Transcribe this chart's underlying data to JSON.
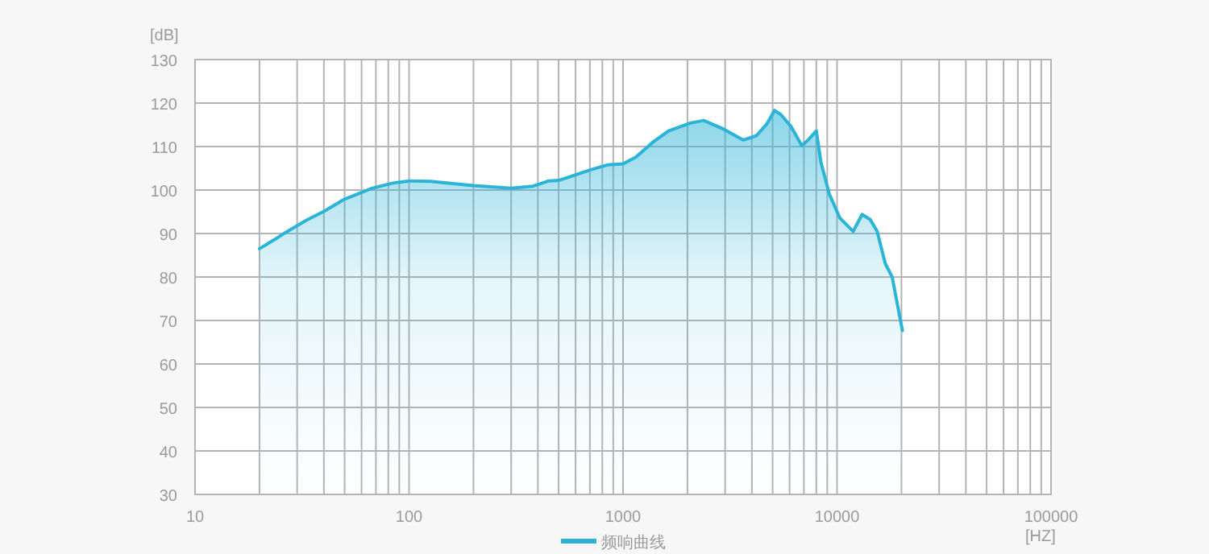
{
  "chart_data": {
    "type": "area",
    "xlabel": "[HZ]",
    "ylabel": "[dB]",
    "log": "x",
    "grid": true,
    "legend": "bottom",
    "marker": "none",
    "line_style": "solid",
    "xlim": [
      10,
      100000
    ],
    "ylim": [
      30,
      130
    ],
    "xticks": [
      10,
      {
        "value": 20,
        "label": null
      },
      {
        "value": 30,
        "label": null
      },
      {
        "value": 40,
        "label": null
      },
      {
        "value": 50,
        "label": null
      },
      {
        "value": 60,
        "label": null
      },
      {
        "value": 70,
        "label": null
      },
      {
        "value": 80,
        "label": null
      },
      {
        "value": 90,
        "label": null
      },
      100,
      {
        "value": 200,
        "label": null
      },
      {
        "value": 300,
        "label": null
      },
      {
        "value": 400,
        "label": null
      },
      {
        "value": 500,
        "label": null
      },
      {
        "value": 600,
        "label": null
      },
      {
        "value": 700,
        "label": null
      },
      {
        "value": 800,
        "label": null
      },
      {
        "value": 900,
        "label": null
      },
      1000,
      {
        "value": 2000,
        "label": null
      },
      {
        "value": 3000,
        "label": null
      },
      {
        "value": 4000,
        "label": null
      },
      {
        "value": 5000,
        "label": null
      },
      {
        "value": 6000,
        "label": null
      },
      {
        "value": 7000,
        "label": null
      },
      {
        "value": 8000,
        "label": null
      },
      {
        "value": 9000,
        "label": null
      },
      10000,
      {
        "value": 20000,
        "label": null
      },
      {
        "value": 30000,
        "label": null
      },
      {
        "value": 40000,
        "label": null
      },
      {
        "value": 50000,
        "label": null
      },
      {
        "value": 60000,
        "label": null
      },
      {
        "value": 70000,
        "label": null
      },
      {
        "value": 80000,
        "label": null
      },
      {
        "value": 90000,
        "label": null
      },
      100000
    ],
    "yticks": [
      30,
      40,
      50,
      60,
      70,
      80,
      90,
      100,
      110,
      120,
      130
    ],
    "series": [
      {
        "name": "频响曲线",
        "color": "#2bb4d8",
        "x": [
          20,
          23.5,
          26.4,
          33,
          40,
          50,
          67,
          84,
          100,
          126,
          200,
          300,
          380,
          450,
          500,
          600,
          710,
          850,
          1000,
          1150,
          1370,
          1630,
          2060,
          2380,
          2900,
          3650,
          4200,
          4700,
          5100,
          5450,
          6100,
          6850,
          7350,
          8000,
          8400,
          9200,
          10300,
          11900,
          13100,
          14300,
          15400,
          16800,
          18100,
          20200
        ],
        "values": [
          86.5,
          88.6,
          90.2,
          93,
          95.1,
          97.9,
          100.4,
          101.6,
          102.1,
          102,
          101,
          100.4,
          100.9,
          102.1,
          102.2,
          103.5,
          104.7,
          105.8,
          106,
          107.6,
          110.9,
          113.6,
          115.4,
          116,
          114.2,
          111.5,
          112.5,
          115.2,
          118.3,
          117.4,
          114.6,
          110.2,
          111.6,
          113.6,
          106.5,
          99.1,
          93.6,
          90.5,
          94.4,
          93.2,
          90.5,
          83.1,
          80,
          67.7
        ]
      }
    ]
  }
}
